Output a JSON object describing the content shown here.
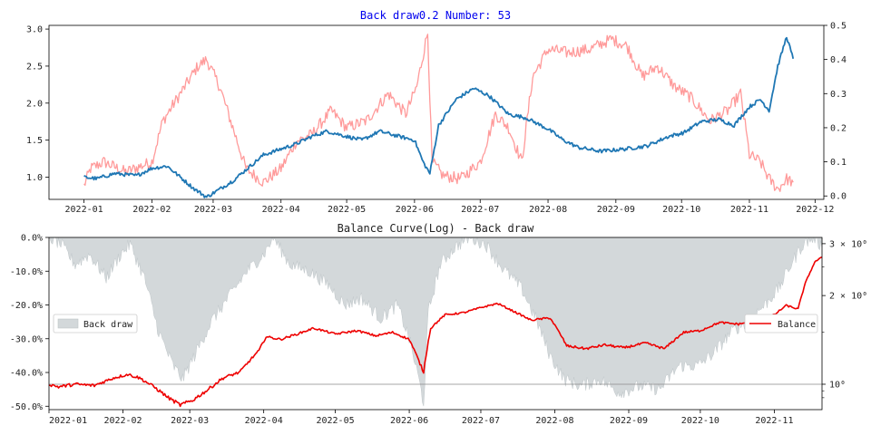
{
  "chart_data": [
    {
      "type": "line",
      "title": "Back draw0.2 Number: 53",
      "title_color": "#0000ee",
      "x_ticks": [
        "2022-01",
        "2022-02",
        "2022-03",
        "2022-04",
        "2022-05",
        "2022-06",
        "2022-07",
        "2022-08",
        "2022-09",
        "2022-10",
        "2022-11",
        "2022-12"
      ],
      "y_left_ticks": [
        "1.0",
        "1.5",
        "2.0",
        "2.5",
        "3.0"
      ],
      "y_right_ticks": [
        "0.0",
        "0.1",
        "0.2",
        "0.3",
        "0.4",
        "0.5"
      ],
      "ylim_left": [
        0.7,
        3.05
      ],
      "ylim_right": [
        -0.01,
        0.5
      ],
      "xlim": [
        "2021-12-16",
        "2022-12-05"
      ],
      "series": [
        {
          "axis": "left",
          "color": "#1f77b4",
          "values": [
            [
              "2022-01-01",
              1.0
            ],
            [
              "2022-01-07",
              0.98
            ],
            [
              "2022-01-15",
              1.05
            ],
            [
              "2022-01-25",
              1.02
            ],
            [
              "2022-02-01",
              1.12
            ],
            [
              "2022-02-08",
              1.15
            ],
            [
              "2022-02-12",
              1.05
            ],
            [
              "2022-02-20",
              0.85
            ],
            [
              "2022-02-26",
              0.73
            ],
            [
              "2022-03-03",
              0.82
            ],
            [
              "2022-03-10",
              0.95
            ],
            [
              "2022-03-16",
              1.1
            ],
            [
              "2022-03-24",
              1.3
            ],
            [
              "2022-04-01",
              1.38
            ],
            [
              "2022-04-08",
              1.45
            ],
            [
              "2022-04-15",
              1.55
            ],
            [
              "2022-04-22",
              1.62
            ],
            [
              "2022-05-01",
              1.55
            ],
            [
              "2022-05-08",
              1.5
            ],
            [
              "2022-05-16",
              1.62
            ],
            [
              "2022-05-25",
              1.55
            ],
            [
              "2022-06-01",
              1.5
            ],
            [
              "2022-06-05",
              1.2
            ],
            [
              "2022-06-08",
              1.05
            ],
            [
              "2022-06-12",
              1.7
            ],
            [
              "2022-06-20",
              2.05
            ],
            [
              "2022-06-28",
              2.2
            ],
            [
              "2022-07-05",
              2.1
            ],
            [
              "2022-07-14",
              1.85
            ],
            [
              "2022-07-22",
              1.8
            ],
            [
              "2022-08-01",
              1.65
            ],
            [
              "2022-08-08",
              1.5
            ],
            [
              "2022-08-15",
              1.4
            ],
            [
              "2022-08-25",
              1.35
            ],
            [
              "2022-09-05",
              1.38
            ],
            [
              "2022-09-15",
              1.42
            ],
            [
              "2022-09-25",
              1.55
            ],
            [
              "2022-10-02",
              1.6
            ],
            [
              "2022-10-10",
              1.75
            ],
            [
              "2022-10-18",
              1.78
            ],
            [
              "2022-10-25",
              1.7
            ],
            [
              "2022-11-01",
              1.95
            ],
            [
              "2022-11-06",
              2.05
            ],
            [
              "2022-11-10",
              1.9
            ],
            [
              "2022-11-14",
              2.5
            ],
            [
              "2022-11-18",
              2.9
            ],
            [
              "2022-11-21",
              2.6
            ]
          ]
        },
        {
          "axis": "right",
          "color": "#ff9a9a",
          "values": [
            [
              "2022-01-01",
              0.03
            ],
            [
              "2022-01-04",
              0.08
            ],
            [
              "2022-01-10",
              0.1
            ],
            [
              "2022-01-20",
              0.07
            ],
            [
              "2022-02-01",
              0.1
            ],
            [
              "2022-02-06",
              0.22
            ],
            [
              "2022-02-14",
              0.3
            ],
            [
              "2022-02-22",
              0.38
            ],
            [
              "2022-02-26",
              0.4
            ],
            [
              "2022-03-04",
              0.32
            ],
            [
              "2022-03-10",
              0.2
            ],
            [
              "2022-03-16",
              0.08
            ],
            [
              "2022-03-24",
              0.04
            ],
            [
              "2022-04-01",
              0.08
            ],
            [
              "2022-04-08",
              0.16
            ],
            [
              "2022-04-15",
              0.18
            ],
            [
              "2022-04-24",
              0.25
            ],
            [
              "2022-05-01",
              0.2
            ],
            [
              "2022-05-10",
              0.22
            ],
            [
              "2022-05-20",
              0.3
            ],
            [
              "2022-05-28",
              0.24
            ],
            [
              "2022-06-02",
              0.32
            ],
            [
              "2022-06-07",
              0.48
            ],
            [
              "2022-06-09",
              0.1
            ],
            [
              "2022-06-14",
              0.06
            ],
            [
              "2022-06-22",
              0.05
            ],
            [
              "2022-07-01",
              0.1
            ],
            [
              "2022-07-08",
              0.24
            ],
            [
              "2022-07-14",
              0.2
            ],
            [
              "2022-07-20",
              0.1
            ],
            [
              "2022-07-25",
              0.35
            ],
            [
              "2022-08-01",
              0.43
            ],
            [
              "2022-08-10",
              0.42
            ],
            [
              "2022-08-20",
              0.43
            ],
            [
              "2022-08-30",
              0.46
            ],
            [
              "2022-09-06",
              0.44
            ],
            [
              "2022-09-13",
              0.35
            ],
            [
              "2022-09-20",
              0.38
            ],
            [
              "2022-09-28",
              0.32
            ],
            [
              "2022-10-05",
              0.29
            ],
            [
              "2022-10-14",
              0.22
            ],
            [
              "2022-10-22",
              0.25
            ],
            [
              "2022-10-28",
              0.3
            ],
            [
              "2022-11-01",
              0.12
            ],
            [
              "2022-11-06",
              0.1
            ],
            [
              "2022-11-10",
              0.05
            ],
            [
              "2022-11-14",
              0.02
            ],
            [
              "2022-11-18",
              0.05
            ],
            [
              "2022-11-21",
              0.04
            ]
          ]
        }
      ]
    },
    {
      "type": "area",
      "title": "Balance Curve(Log) - Back draw",
      "x_ticks": [
        "2022-01",
        "2022-02",
        "2022-03",
        "2022-04",
        "2022-05",
        "2022-06",
        "2022-07",
        "2022-08",
        "2022-09",
        "2022-10",
        "2022-11"
      ],
      "y_left_ticks": [
        "0.0%",
        "-10.0%",
        "-20.0%",
        "-30.0%",
        "-40.0%",
        "-50.0%"
      ],
      "y_right_ticks": [
        "3 × 10⁰",
        "2 × 10⁰",
        "10⁰"
      ],
      "ylim_left": [
        -0.51,
        0.0
      ],
      "ylim_right": [
        0.82,
        3.15
      ],
      "y_right_scale": "log",
      "xlim": [
        "2022-01-01",
        "2022-11-21"
      ],
      "reference_line": 1.0,
      "legend_left": "Back draw",
      "legend_right": "Balance",
      "drawdown_color": "#d3d8da",
      "balance_color": "#ee0000",
      "drawdown": [
        [
          "2022-01-01",
          0.0
        ],
        [
          "2022-01-06",
          -0.02
        ],
        [
          "2022-01-12",
          -0.08
        ],
        [
          "2022-01-18",
          -0.05
        ],
        [
          "2022-01-25",
          -0.12
        ],
        [
          "2022-01-31",
          -0.05
        ],
        [
          "2022-02-04",
          -0.02
        ],
        [
          "2022-02-10",
          -0.12
        ],
        [
          "2022-02-16",
          -0.28
        ],
        [
          "2022-02-22",
          -0.38
        ],
        [
          "2022-02-26",
          -0.42
        ],
        [
          "2022-03-03",
          -0.35
        ],
        [
          "2022-03-10",
          -0.25
        ],
        [
          "2022-03-17",
          -0.18
        ],
        [
          "2022-03-25",
          -0.1
        ],
        [
          "2022-04-01",
          -0.05
        ],
        [
          "2022-04-05",
          0.0
        ],
        [
          "2022-04-12",
          -0.08
        ],
        [
          "2022-04-20",
          -0.1
        ],
        [
          "2022-04-28",
          -0.14
        ],
        [
          "2022-05-05",
          -0.2
        ],
        [
          "2022-05-12",
          -0.18
        ],
        [
          "2022-05-20",
          -0.24
        ],
        [
          "2022-05-27",
          -0.2
        ],
        [
          "2022-06-01",
          -0.3
        ],
        [
          "2022-06-05",
          -0.42
        ],
        [
          "2022-06-07",
          -0.49
        ],
        [
          "2022-06-09",
          -0.22
        ],
        [
          "2022-06-14",
          -0.08
        ],
        [
          "2022-06-20",
          -0.03
        ],
        [
          "2022-06-26",
          0.0
        ],
        [
          "2022-07-03",
          -0.02
        ],
        [
          "2022-07-10",
          -0.09
        ],
        [
          "2022-07-18",
          -0.15
        ],
        [
          "2022-07-24",
          -0.24
        ],
        [
          "2022-07-30",
          -0.35
        ],
        [
          "2022-08-05",
          -0.42
        ],
        [
          "2022-08-12",
          -0.44
        ],
        [
          "2022-08-20",
          -0.42
        ],
        [
          "2022-08-28",
          -0.46
        ],
        [
          "2022-09-06",
          -0.44
        ],
        [
          "2022-09-14",
          -0.45
        ],
        [
          "2022-09-22",
          -0.38
        ],
        [
          "2022-09-30",
          -0.38
        ],
        [
          "2022-10-07",
          -0.34
        ],
        [
          "2022-10-14",
          -0.28
        ],
        [
          "2022-10-22",
          -0.24
        ],
        [
          "2022-10-28",
          -0.2
        ],
        [
          "2022-11-03",
          -0.15
        ],
        [
          "2022-11-08",
          -0.08
        ],
        [
          "2022-11-13",
          -0.02
        ],
        [
          "2022-11-18",
          0.0
        ],
        [
          "2022-11-21",
          -0.03
        ]
      ],
      "balance": [
        [
          "2022-01-01",
          1.0
        ],
        [
          "2022-01-05",
          0.98
        ],
        [
          "2022-01-12",
          1.0
        ],
        [
          "2022-01-20",
          0.99
        ],
        [
          "2022-01-28",
          1.05
        ],
        [
          "2022-02-03",
          1.08
        ],
        [
          "2022-02-08",
          1.05
        ],
        [
          "2022-02-14",
          0.98
        ],
        [
          "2022-02-20",
          0.9
        ],
        [
          "2022-02-25",
          0.85
        ],
        [
          "2022-03-02",
          0.88
        ],
        [
          "2022-03-08",
          0.95
        ],
        [
          "2022-03-15",
          1.05
        ],
        [
          "2022-03-22",
          1.1
        ],
        [
          "2022-03-30",
          1.3
        ],
        [
          "2022-04-02",
          1.45
        ],
        [
          "2022-04-08",
          1.42
        ],
        [
          "2022-04-15",
          1.48
        ],
        [
          "2022-04-22",
          1.55
        ],
        [
          "2022-05-01",
          1.48
        ],
        [
          "2022-05-10",
          1.52
        ],
        [
          "2022-05-18",
          1.46
        ],
        [
          "2022-05-25",
          1.5
        ],
        [
          "2022-06-01",
          1.42
        ],
        [
          "2022-06-05",
          1.2
        ],
        [
          "2022-06-07",
          1.1
        ],
        [
          "2022-06-10",
          1.55
        ],
        [
          "2022-06-16",
          1.72
        ],
        [
          "2022-06-24",
          1.75
        ],
        [
          "2022-07-01",
          1.82
        ],
        [
          "2022-07-08",
          1.88
        ],
        [
          "2022-07-14",
          1.78
        ],
        [
          "2022-07-22",
          1.65
        ],
        [
          "2022-07-30",
          1.68
        ],
        [
          "2022-08-06",
          1.35
        ],
        [
          "2022-08-14",
          1.32
        ],
        [
          "2022-08-22",
          1.36
        ],
        [
          "2022-08-30",
          1.33
        ],
        [
          "2022-09-08",
          1.38
        ],
        [
          "2022-09-16",
          1.32
        ],
        [
          "2022-09-24",
          1.5
        ],
        [
          "2022-10-01",
          1.52
        ],
        [
          "2022-10-09",
          1.62
        ],
        [
          "2022-10-17",
          1.6
        ],
        [
          "2022-10-25",
          1.65
        ],
        [
          "2022-11-01",
          1.72
        ],
        [
          "2022-11-06",
          1.85
        ],
        [
          "2022-11-11",
          1.8
        ],
        [
          "2022-11-14",
          2.2
        ],
        [
          "2022-11-18",
          2.6
        ],
        [
          "2022-11-21",
          2.7
        ]
      ]
    }
  ]
}
